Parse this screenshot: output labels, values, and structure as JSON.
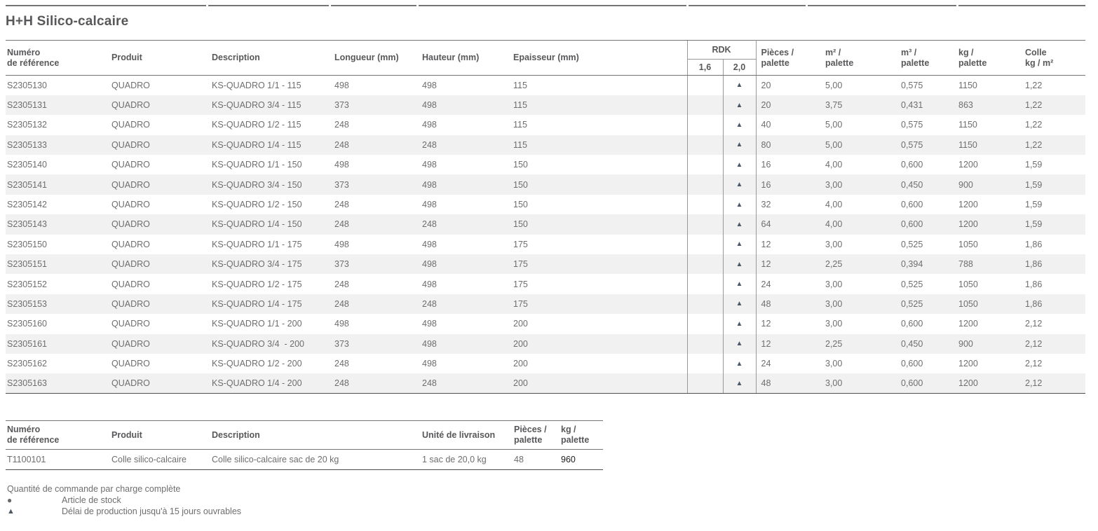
{
  "page": {
    "title": "H+H Silico-calcaire"
  },
  "colors": {
    "heading": "#58585b",
    "text": "#6e6e70",
    "stripe": "#f1f1f2",
    "border": "#737376",
    "border-light": "#98989b",
    "border-dark": "#4e4e50",
    "triangle": "#4d5966",
    "circle": "#69696b",
    "value-highlight": "#1c1c1e"
  },
  "main_table": {
    "headers": {
      "ref": [
        "Numéro",
        "de référence"
      ],
      "produit": "Produit",
      "description": "Description",
      "longueur": "Longueur (mm)",
      "hauteur": "Hauteur (mm)",
      "epaisseur": "Epaisseur (mm)",
      "rdk": "RDK",
      "rdk_16": "1,6",
      "rdk_20": "2,0",
      "pieces": [
        "Pièces /",
        "palette"
      ],
      "m2": [
        "m² /",
        "palette"
      ],
      "m3": [
        "m³ /",
        "palette"
      ],
      "kg": [
        "kg /",
        "palette"
      ],
      "colle": [
        "Colle",
        "kg / m²"
      ]
    },
    "rows": [
      {
        "ref": "S2305130",
        "produit": "QUADRO",
        "description": "KS-QUADRO 1/1 - 115",
        "longueur": "498",
        "hauteur": "498",
        "epaisseur": "115",
        "rdk_16": "",
        "rdk_20": "▲",
        "pieces": "20",
        "m2": "5,00",
        "m3": "0,575",
        "kg": "1150",
        "colle": "1,22"
      },
      {
        "ref": "S2305131",
        "produit": "QUADRO",
        "description": "KS-QUADRO 3/4 - 115",
        "longueur": "373",
        "hauteur": "498",
        "epaisseur": "115",
        "rdk_16": "",
        "rdk_20": "▲",
        "pieces": "20",
        "m2": "3,75",
        "m3": "0,431",
        "kg": "863",
        "colle": "1,22"
      },
      {
        "ref": "S2305132",
        "produit": "QUADRO",
        "description": "KS-QUADRO 1/2 - 115",
        "longueur": "248",
        "hauteur": "498",
        "epaisseur": "115",
        "rdk_16": "",
        "rdk_20": "▲",
        "pieces": "40",
        "m2": "5,00",
        "m3": "0,575",
        "kg": "1150",
        "colle": "1,22"
      },
      {
        "ref": "S2305133",
        "produit": "QUADRO",
        "description": "KS-QUADRO 1/4 - 115",
        "longueur": "248",
        "hauteur": "248",
        "epaisseur": "115",
        "rdk_16": "",
        "rdk_20": "▲",
        "pieces": "80",
        "m2": "5,00",
        "m3": "0,575",
        "kg": "1150",
        "colle": "1,22"
      },
      {
        "ref": "S2305140",
        "produit": "QUADRO",
        "description": "KS-QUADRO 1/1 - 150",
        "longueur": "498",
        "hauteur": "498",
        "epaisseur": "150",
        "rdk_16": "",
        "rdk_20": "▲",
        "pieces": "16",
        "m2": "4,00",
        "m3": "0,600",
        "kg": "1200",
        "colle": "1,59"
      },
      {
        "ref": "S2305141",
        "produit": "QUADRO",
        "description": "KS-QUADRO 3/4 - 150",
        "longueur": "373",
        "hauteur": "498",
        "epaisseur": "150",
        "rdk_16": "",
        "rdk_20": "▲",
        "pieces": "16",
        "m2": "3,00",
        "m3": "0,450",
        "kg": "900",
        "colle": "1,59"
      },
      {
        "ref": "S2305142",
        "produit": "QUADRO",
        "description": "KS-QUADRO 1/2 - 150",
        "longueur": "248",
        "hauteur": "498",
        "epaisseur": "150",
        "rdk_16": "",
        "rdk_20": "▲",
        "pieces": "32",
        "m2": "4,00",
        "m3": "0,600",
        "kg": "1200",
        "colle": "1,59"
      },
      {
        "ref": "S2305143",
        "produit": "QUADRO",
        "description": "KS-QUADRO 1/4 - 150",
        "longueur": "248",
        "hauteur": "248",
        "epaisseur": "150",
        "rdk_16": "",
        "rdk_20": "▲",
        "pieces": "64",
        "m2": "4,00",
        "m3": "0,600",
        "kg": "1200",
        "colle": "1,59"
      },
      {
        "ref": "S2305150",
        "produit": "QUADRO",
        "description": "KS-QUADRO 1/1 - 175",
        "longueur": "498",
        "hauteur": "498",
        "epaisseur": "175",
        "rdk_16": "",
        "rdk_20": "▲",
        "pieces": "12",
        "m2": "3,00",
        "m3": "0,525",
        "kg": "1050",
        "colle": "1,86"
      },
      {
        "ref": "S2305151",
        "produit": "QUADRO",
        "description": "KS-QUADRO 3/4 - 175",
        "longueur": "373",
        "hauteur": "498",
        "epaisseur": "175",
        "rdk_16": "",
        "rdk_20": "▲",
        "pieces": "12",
        "m2": "2,25",
        "m3": "0,394",
        "kg": "788",
        "colle": "1,86"
      },
      {
        "ref": "S2305152",
        "produit": "QUADRO",
        "description": "KS-QUADRO 1/2 - 175",
        "longueur": "248",
        "hauteur": "498",
        "epaisseur": "175",
        "rdk_16": "",
        "rdk_20": "▲",
        "pieces": "24",
        "m2": "3,00",
        "m3": "0,525",
        "kg": "1050",
        "colle": "1,86"
      },
      {
        "ref": "S2305153",
        "produit": "QUADRO",
        "description": "KS-QUADRO 1/4 - 175",
        "longueur": "248",
        "hauteur": "248",
        "epaisseur": "175",
        "rdk_16": "",
        "rdk_20": "▲",
        "pieces": "48",
        "m2": "3,00",
        "m3": "0,525",
        "kg": "1050",
        "colle": "1,86"
      },
      {
        "ref": "S2305160",
        "produit": "QUADRO",
        "description": "KS-QUADRO 1/1 - 200",
        "longueur": "498",
        "hauteur": "498",
        "epaisseur": "200",
        "rdk_16": "",
        "rdk_20": "▲",
        "pieces": "12",
        "m2": "3,00",
        "m3": "0,600",
        "kg": "1200",
        "colle": "2,12"
      },
      {
        "ref": "S2305161",
        "produit": "QUADRO",
        "description": "KS-QUADRO 3/4  - 200",
        "longueur": "373",
        "hauteur": "498",
        "epaisseur": "200",
        "rdk_16": "",
        "rdk_20": "▲",
        "pieces": "12",
        "m2": "2,25",
        "m3": "0,450",
        "kg": "900",
        "colle": "2,12"
      },
      {
        "ref": "S2305162",
        "produit": "QUADRO",
        "description": "KS-QUADRO 1/2 - 200",
        "longueur": "248",
        "hauteur": "498",
        "epaisseur": "200",
        "rdk_16": "",
        "rdk_20": "▲",
        "pieces": "24",
        "m2": "3,00",
        "m3": "0,600",
        "kg": "1200",
        "colle": "2,12"
      },
      {
        "ref": "S2305163",
        "produit": "QUADRO",
        "description": "KS-QUADRO 1/4 - 200",
        "longueur": "248",
        "hauteur": "248",
        "epaisseur": "200",
        "rdk_16": "",
        "rdk_20": "▲",
        "pieces": "48",
        "m2": "3,00",
        "m3": "0,600",
        "kg": "1200",
        "colle": "2,12"
      }
    ]
  },
  "colle_table": {
    "headers": {
      "ref": [
        "Numéro",
        "de référence"
      ],
      "produit": "Produit",
      "description": "Description",
      "unite": "Unité de livraison",
      "pieces": [
        "Pièces /",
        "palette"
      ],
      "kg": [
        "kg /",
        "palette"
      ]
    },
    "rows": [
      {
        "ref": "T1100101",
        "produit": "Colle silico-calcaire",
        "description": "Colle silico-calcaire sac de 20 kg",
        "unite": "1 sac de 20,0 kg",
        "pieces": "48",
        "kg": "960"
      }
    ]
  },
  "legend": {
    "title": "Quantité de commande par charge complète",
    "items": [
      {
        "icon": "●",
        "label": "Article de stock"
      },
      {
        "icon": "▲",
        "label": "Délai de production jusqu'à 15 jours ouvrables"
      }
    ]
  }
}
